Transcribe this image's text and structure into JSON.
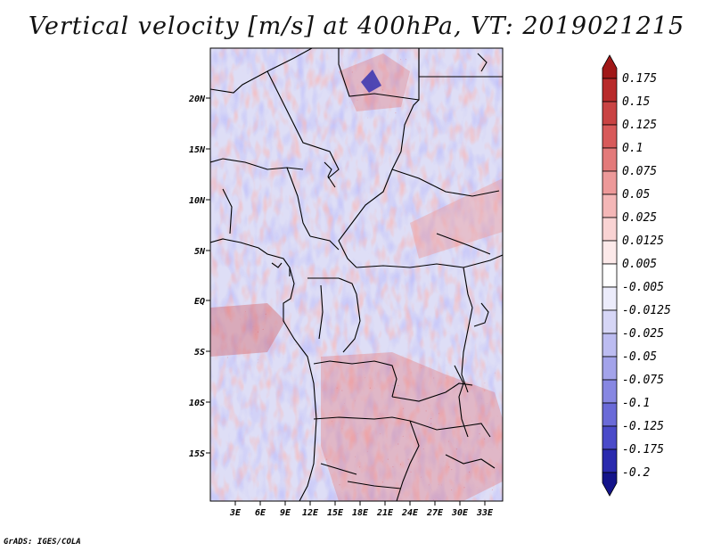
{
  "title": "Vertical velocity [m/s] at 400hPa, VT: 2019021215",
  "map": {
    "lat_ticks": [
      "20N",
      "15N",
      "10N",
      "5N",
      "EQ",
      "5S",
      "10S",
      "15S"
    ],
    "lon_ticks": [
      "3E",
      "6E",
      "9E",
      "12E",
      "15E",
      "18E",
      "21E",
      "24E",
      "27E",
      "30E",
      "33E"
    ],
    "domain": {
      "lon_min": 0,
      "lon_max": 35,
      "lat_min": -20,
      "lat_max": 25
    }
  },
  "colorbar": {
    "levels": [
      "0.175",
      "0.15",
      "0.125",
      "0.1",
      "0.075",
      "0.05",
      "0.025",
      "0.0125",
      "0.005",
      "-0.005",
      "-0.0125",
      "-0.025",
      "-0.05",
      "-0.075",
      "-0.1",
      "-0.125",
      "-0.175",
      "-0.2"
    ],
    "colors": [
      "#a01818",
      "#b82a2a",
      "#c94343",
      "#d85a5a",
      "#e37a7a",
      "#ed9999",
      "#f4b7b7",
      "#f9d3d3",
      "#fce9e9",
      "#ffffff",
      "#ececfb",
      "#d6d6f6",
      "#bcbcf1",
      "#a3a3ea",
      "#8787e2",
      "#6a6ad8",
      "#4a4ac9",
      "#2a2aae",
      "#14148a"
    ]
  },
  "credit": "GrADS: IGES/COLA"
}
